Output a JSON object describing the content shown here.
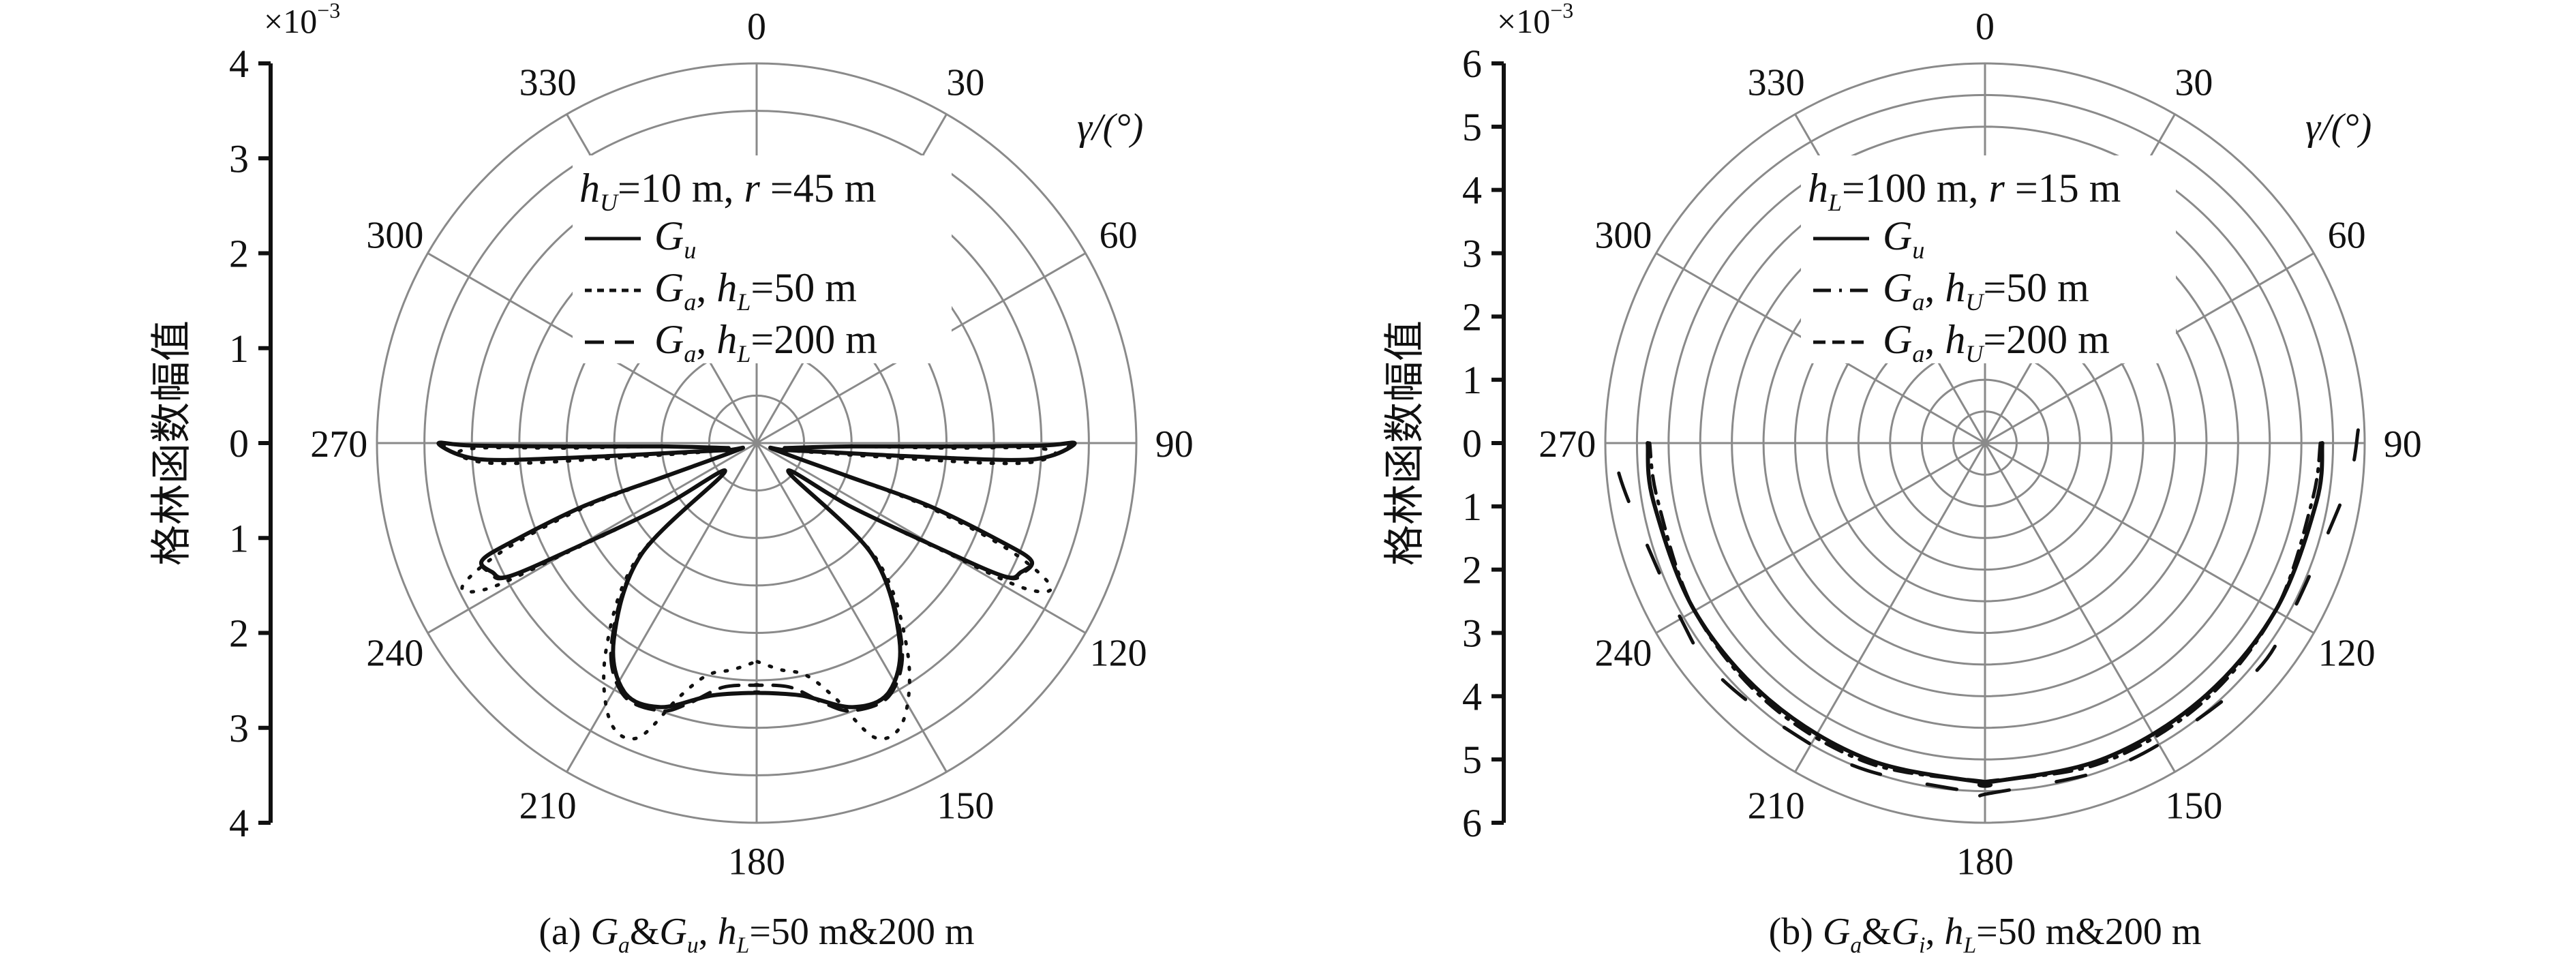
{
  "chart_data": [
    {
      "type": "polar-line",
      "id": "a",
      "caption": [
        {
          "t": "(a) "
        },
        {
          "t": "G",
          "it": true
        },
        {
          "t": "a",
          "sub": true
        },
        {
          "t": "&"
        },
        {
          "t": "G",
          "it": true
        },
        {
          "t": "u",
          "sub": true
        },
        {
          "t": ", "
        },
        {
          "t": "h",
          "it": true
        },
        {
          "t": "L",
          "sub": true
        },
        {
          "t": "=50 m&200 m"
        }
      ],
      "ylabel": "格林函数幅值",
      "yscale_label": "×10",
      "yscale_exp": "−3",
      "rmax": 4,
      "ring_step": 0.5,
      "yticks": [
        "4",
        "3",
        "2",
        "1",
        "0",
        "1",
        "2",
        "3",
        "4"
      ],
      "angle_axis_label": "γ/(°)",
      "angle_ticks": [
        "0",
        "30",
        "60",
        "90",
        "120",
        "150",
        "180",
        "210",
        "240",
        "270",
        "300",
        "330"
      ],
      "legend_title": [
        {
          "t": "h",
          "it": true
        },
        {
          "t": "U",
          "sub": true
        },
        {
          "t": "=10 m, "
        },
        {
          "t": "r",
          "it": true
        },
        {
          "t": " =45 m"
        }
      ],
      "mirror": true,
      "series": [
        {
          "name": [
            {
              "t": "G",
              "it": true
            },
            {
              "t": "u",
              "sub": true
            }
          ],
          "style": "solid",
          "points": [
            [
              100,
              0.3
            ],
            [
              92,
              1.0
            ],
            [
              91,
              2.0
            ],
            [
              90.5,
              3.0
            ],
            [
              90,
              3.35
            ],
            [
              92.5,
              3.1
            ],
            [
              93.8,
              2.69
            ],
            [
              95,
              1.58
            ],
            [
              97,
              0.8
            ],
            [
              104,
              0.3
            ],
            [
              110,
              0.2
            ],
            [
              110,
              1.0
            ],
            [
              110,
              1.92
            ],
            [
              112,
              2.8
            ],
            [
              113.2,
              3.15
            ],
            [
              116,
              3.1
            ],
            [
              118.3,
              2.96
            ],
            [
              120,
              2.2
            ],
            [
              124,
              1.2
            ],
            [
              132,
              0.45
            ],
            [
              134,
              1.69
            ],
            [
              144,
              2.56
            ],
            [
              152,
              2.97
            ],
            [
              160,
              2.96
            ],
            [
              170,
              2.7
            ],
            [
              180,
              2.63
            ]
          ]
        },
        {
          "name": [
            {
              "t": "G",
              "it": true
            },
            {
              "t": "a",
              "sub": true
            },
            {
              "t": ", "
            },
            {
              "t": "h",
              "it": true
            },
            {
              "t": "L",
              "sub": true
            },
            {
              "t": "=50 m"
            }
          ],
          "style": "dotted",
          "points": [
            [
              100,
              0.3
            ],
            [
              92,
              1.0
            ],
            [
              91.5,
              2.0
            ],
            [
              91,
              2.9
            ],
            [
              92,
              3.15
            ],
            [
              94,
              2.9
            ],
            [
              95,
              2.4
            ],
            [
              96,
              1.5
            ],
            [
              98,
              0.8
            ],
            [
              104,
              0.3
            ],
            [
              110,
              0.2
            ],
            [
              110,
              1.0
            ],
            [
              110.5,
              1.95
            ],
            [
              113,
              2.9
            ],
            [
              116,
              3.45
            ],
            [
              118.5,
              3.2
            ],
            [
              120,
              2.3
            ],
            [
              124,
              1.2
            ],
            [
              132,
              0.45
            ],
            [
              134,
              1.75
            ],
            [
              144,
              2.7
            ],
            [
              152,
              3.3
            ],
            [
              158,
              3.35
            ],
            [
              163,
              2.8
            ],
            [
              168,
              2.5
            ],
            [
              174,
              2.4
            ],
            [
              180,
              2.3
            ]
          ]
        },
        {
          "name": [
            {
              "t": "G",
              "it": true
            },
            {
              "t": "a",
              "sub": true
            },
            {
              "t": ", "
            },
            {
              "t": "h",
              "it": true
            },
            {
              "t": "L",
              "sub": true
            },
            {
              "t": "=200 m"
            }
          ],
          "style": "dashed",
          "points": [
            [
              100,
              0.3
            ],
            [
              92,
              1.0
            ],
            [
              91,
              2.0
            ],
            [
              90.5,
              3.0
            ],
            [
              90.2,
              3.3
            ],
            [
              92.5,
              3.1
            ],
            [
              93.8,
              2.69
            ],
            [
              95,
              1.58
            ],
            [
              97,
              0.8
            ],
            [
              104,
              0.3
            ],
            [
              110,
              0.2
            ],
            [
              110,
              1.0
            ],
            [
              110,
              1.92
            ],
            [
              112,
              2.8
            ],
            [
              113.2,
              3.15
            ],
            [
              116,
              3.12
            ],
            [
              118.3,
              2.98
            ],
            [
              120,
              2.2
            ],
            [
              124,
              1.2
            ],
            [
              132,
              0.45
            ],
            [
              134,
              1.7
            ],
            [
              144,
              2.6
            ],
            [
              152,
              3.0
            ],
            [
              160,
              3.0
            ],
            [
              165,
              2.85
            ],
            [
              172,
              2.6
            ],
            [
              180,
              2.55
            ]
          ]
        }
      ]
    },
    {
      "type": "polar-line",
      "id": "b",
      "caption": [
        {
          "t": "(b) "
        },
        {
          "t": "G",
          "it": true
        },
        {
          "t": "a",
          "sub": true
        },
        {
          "t": "&"
        },
        {
          "t": "G",
          "it": true
        },
        {
          "t": "i",
          "sub": true
        },
        {
          "t": ", "
        },
        {
          "t": "h",
          "it": true
        },
        {
          "t": "L",
          "sub": true
        },
        {
          "t": "=50 m&200 m"
        }
      ],
      "ylabel": "格林函数幅值",
      "yscale_label": "×10",
      "yscale_exp": "−3",
      "rmax": 6,
      "ring_step": 0.5,
      "yticks": [
        "6",
        "5",
        "4",
        "3",
        "2",
        "1",
        "0",
        "1",
        "2",
        "3",
        "4",
        "5",
        "6"
      ],
      "angle_axis_label": "γ/(°)",
      "angle_ticks": [
        "0",
        "30",
        "60",
        "90",
        "120",
        "150",
        "180",
        "210",
        "240",
        "270",
        "300",
        "330"
      ],
      "legend_title": [
        {
          "t": "h",
          "it": true
        },
        {
          "t": "L",
          "sub": true
        },
        {
          "t": "=100 m, "
        },
        {
          "t": "r",
          "it": true
        },
        {
          "t": " =15 m"
        }
      ],
      "mirror": true,
      "series": [
        {
          "name": [
            {
              "t": "G",
              "it": true
            },
            {
              "t": "u",
              "sub": true
            }
          ],
          "style": "solid",
          "points": [
            [
              90,
              5.33
            ],
            [
              100,
              5.32
            ],
            [
              120,
              5.3
            ],
            [
              140,
              5.3
            ],
            [
              160,
              5.33
            ],
            [
              180,
              5.37
            ]
          ]
        },
        {
          "name": [
            {
              "t": "G",
              "it": true
            },
            {
              "t": "a",
              "sub": true
            },
            {
              "t": ", "
            },
            {
              "t": "h",
              "it": true
            },
            {
              "t": "U",
              "sub": true
            },
            {
              "t": "=50 m"
            }
          ],
          "style": "dashdot",
          "points": [
            [
              90,
              5.3
            ],
            [
              100,
              5.25
            ],
            [
              120,
              5.3
            ],
            [
              140,
              5.35
            ],
            [
              160,
              5.38
            ],
            [
              180,
              5.35
            ]
          ]
        },
        {
          "name": [
            {
              "t": "G",
              "it": true
            },
            {
              "t": "a",
              "sub": true
            },
            {
              "t": ", "
            },
            {
              "t": "h",
              "it": true
            },
            {
              "t": "U",
              "sub": true
            },
            {
              "t": "=200 m"
            }
          ],
          "style": "longdash",
          "points": [
            [
              88,
              5.9
            ],
            [
              95,
              5.8
            ],
            [
              105,
              5.6
            ],
            [
              120,
              5.55
            ],
            [
              130,
              5.6
            ],
            [
              145,
              5.5
            ],
            [
              160,
              5.5
            ],
            [
              180,
              5.55
            ]
          ]
        }
      ]
    }
  ]
}
